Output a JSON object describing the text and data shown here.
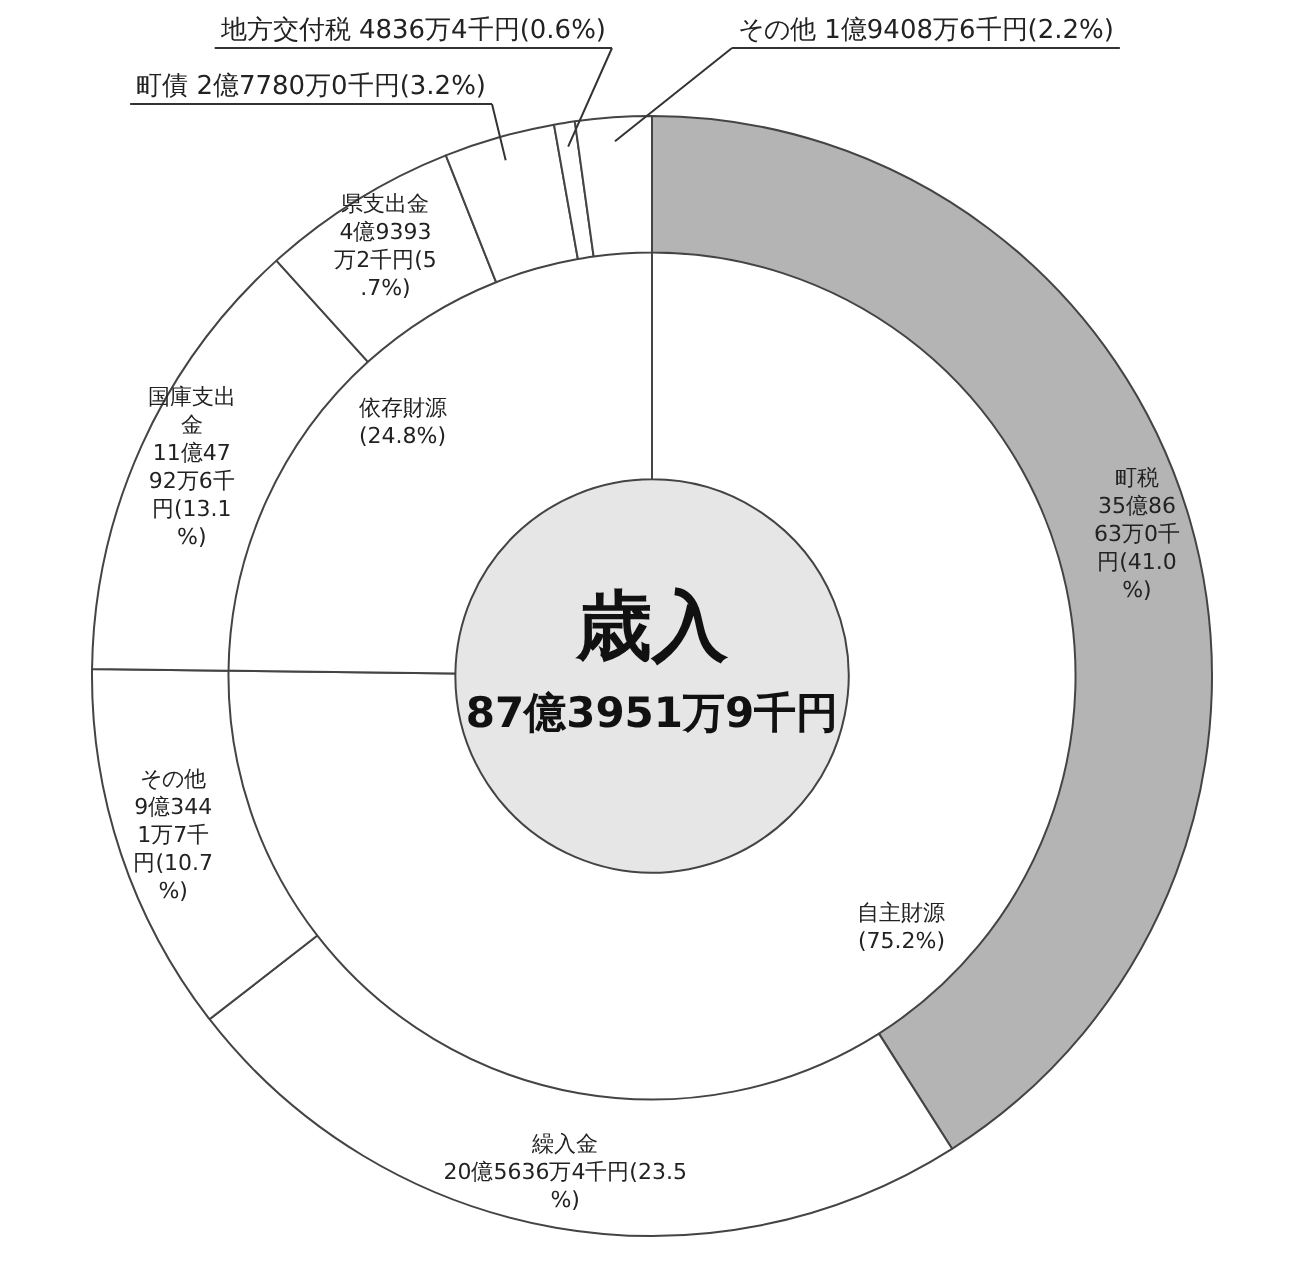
{
  "chart_data": [
    {
      "type": "donut",
      "title": "歳入",
      "subtitle": "87億3951万9千円",
      "categories": [
        "自主財源",
        "依存財源"
      ],
      "values": [
        75.2,
        24.8
      ],
      "colors": [
        "#ffffff",
        "#ffffff"
      ],
      "value_labels": [
        "(75.2%)",
        "(24.8%)"
      ]
    },
    {
      "type": "donut",
      "categories": [
        "町税",
        "繰入金",
        "その他",
        "国庫支出金",
        "県支出金",
        "町債",
        "地方交付税",
        "その他"
      ],
      "values": [
        41.0,
        23.5,
        10.7,
        13.1,
        5.7,
        3.2,
        0.6,
        2.2
      ],
      "colors": [
        "#b4b4b4",
        "#ffffff",
        "#ffffff",
        "#ffffff",
        "#ffffff",
        "#ffffff",
        "#ffffff",
        "#ffffff"
      ],
      "value_labels": [
        "35億8663万0千円(41.0%)",
        "20億5636万4千円(23.5%)",
        "9億3441万7千円(10.7%)",
        "11億4792万6千円(13.1%)",
        "4億9393万2千円(5.7%)",
        "2億7780万0千円(3.2%)",
        "4836万4千円(0.6%)",
        "1億9408万6千円(2.2%)"
      ]
    }
  ]
}
